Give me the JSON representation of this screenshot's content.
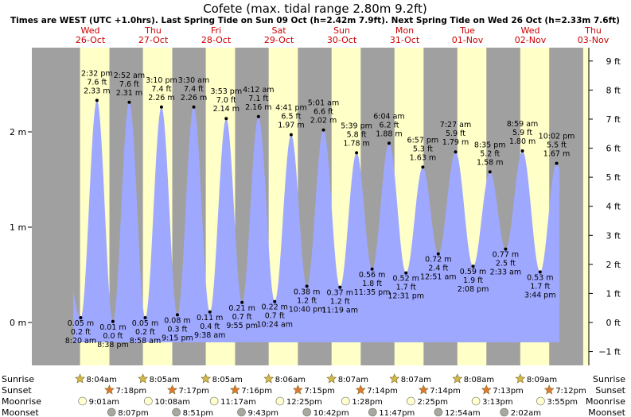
{
  "chart_data": {
    "type": "area",
    "title": "Cofete (max. tidal range 2.80m 9.2ft)",
    "subtitle": "Times are WEST (UTC +1.0hrs). Last Spring Tide on Sun 09 Oct (h=2.42m 7.9ft). Next Spring Tide on Wed 26 Oct (h=2.33m 7.6ft)",
    "colors": {
      "night": "#a0a0a0",
      "day": "#ffffc8",
      "tide": "#9fa8ff",
      "label_day": "#cc0000",
      "sun_icon": "#d4b84a",
      "sunset_icon": "#e07a2e",
      "moonrise_icon": "#ffffd0",
      "moonset_icon": "#a8a8a0"
    },
    "days": [
      {
        "dow": "Wed",
        "date": "26-Oct"
      },
      {
        "dow": "Thu",
        "date": "27-Oct"
      },
      {
        "dow": "Fri",
        "date": "28-Oct"
      },
      {
        "dow": "Sat",
        "date": "29-Oct"
      },
      {
        "dow": "Sun",
        "date": "30-Oct"
      },
      {
        "dow": "Mon",
        "date": "31-Oct"
      },
      {
        "dow": "Tue",
        "date": "01-Nov"
      },
      {
        "dow": "Wed",
        "date": "02-Nov"
      },
      {
        "dow": "Thu",
        "date": "03-Nov"
      }
    ],
    "y_left_ticks": [
      {
        "v": 0,
        "label": "0 m"
      },
      {
        "v": 1,
        "label": "1 m"
      },
      {
        "v": 2,
        "label": "2 m"
      }
    ],
    "y_right_ticks": [
      {
        "v": -1,
        "label": "−1 ft"
      },
      {
        "v": 0,
        "label": "0 ft"
      },
      {
        "v": 1,
        "label": "1 ft"
      },
      {
        "v": 2,
        "label": "2 ft"
      },
      {
        "v": 3,
        "label": "3 ft"
      },
      {
        "v": 4,
        "label": "4 ft"
      },
      {
        "v": 5,
        "label": "5 ft"
      },
      {
        "v": 6,
        "label": "6 ft"
      },
      {
        "v": 7,
        "label": "7 ft"
      },
      {
        "v": 8,
        "label": "8 ft"
      },
      {
        "v": 9,
        "label": "9 ft"
      }
    ],
    "ylim_m": [
      -0.25,
      2.55
    ],
    "daylight": [
      {
        "day": 0,
        "sunrise": "8:04am",
        "sunset": "7:18pm"
      },
      {
        "day": 1,
        "sunrise": "8:05am",
        "sunset": "7:17pm"
      },
      {
        "day": 2,
        "sunrise": "8:05am",
        "sunset": "7:16pm"
      },
      {
        "day": 3,
        "sunrise": "8:06am",
        "sunset": "7:15pm"
      },
      {
        "day": 4,
        "sunrise": "8:07am",
        "sunset": "7:14pm"
      },
      {
        "day": 5,
        "sunrise": "8:07am",
        "sunset": "7:14pm"
      },
      {
        "day": 6,
        "sunrise": "8:08am",
        "sunset": "7:13pm"
      },
      {
        "day": 7,
        "sunrise": "8:09am",
        "sunset": "7:12pm"
      }
    ],
    "moon": [
      {
        "day": 0,
        "moonrise": "9:01am",
        "moonset": "8:07pm"
      },
      {
        "day": 1,
        "moonrise": "10:08am",
        "moonset": "8:51pm"
      },
      {
        "day": 2,
        "moonrise": "11:17am",
        "moonset": "9:43pm"
      },
      {
        "day": 3,
        "moonrise": "12:25pm",
        "moonset": "10:42pm"
      },
      {
        "day": 4,
        "moonrise": "1:28pm",
        "moonset": "11:47pm"
      },
      {
        "day": 5,
        "moonrise": "2:25pm",
        "moonset": ""
      },
      {
        "day": 6,
        "moonrise": "3:13pm",
        "moonset": "12:54am"
      },
      {
        "day": 7,
        "moonrise": "3:55pm",
        "moonset": "2:02am"
      }
    ],
    "tides": [
      {
        "day": 0,
        "time": "8:20 am",
        "h": 0.05,
        "ft": "0.2 ft",
        "hm": "0.05 m",
        "type": "low"
      },
      {
        "day": 0,
        "time": "2:32 pm",
        "h": 2.33,
        "ft": "7.6 ft",
        "hm": "2.33 m",
        "type": "high"
      },
      {
        "day": 0,
        "time": "8:38 pm",
        "h": 0.01,
        "ft": "0.0 ft",
        "hm": "0.01 m",
        "type": "low"
      },
      {
        "day": 1,
        "time": "2:52 am",
        "h": 2.31,
        "ft": "7.6 ft",
        "hm": "2.31 m",
        "type": "high"
      },
      {
        "day": 1,
        "time": "8:58 am",
        "h": 0.05,
        "ft": "0.2 ft",
        "hm": "0.05 m",
        "type": "low"
      },
      {
        "day": 1,
        "time": "3:10 pm",
        "h": 2.26,
        "ft": "7.4 ft",
        "hm": "2.26 m",
        "type": "high"
      },
      {
        "day": 1,
        "time": "9:15 pm",
        "h": 0.08,
        "ft": "0.3 ft",
        "hm": "0.08 m",
        "type": "low"
      },
      {
        "day": 2,
        "time": "3:30 am",
        "h": 2.26,
        "ft": "7.4 ft",
        "hm": "2.26 m",
        "type": "high"
      },
      {
        "day": 2,
        "time": "9:38 am",
        "h": 0.11,
        "ft": "0.4 ft",
        "hm": "0.11 m",
        "type": "low"
      },
      {
        "day": 2,
        "time": "3:53 pm",
        "h": 2.14,
        "ft": "7.0 ft",
        "hm": "2.14 m",
        "type": "high"
      },
      {
        "day": 2,
        "time": "9:55 pm",
        "h": 0.21,
        "ft": "0.7 ft",
        "hm": "0.21 m",
        "type": "low"
      },
      {
        "day": 3,
        "time": "4:12 am",
        "h": 2.16,
        "ft": "7.1 ft",
        "hm": "2.16 m",
        "type": "high"
      },
      {
        "day": 3,
        "time": "10:24 am",
        "h": 0.22,
        "ft": "0.7 ft",
        "hm": "0.22 m",
        "type": "low"
      },
      {
        "day": 3,
        "time": "4:41 pm",
        "h": 1.97,
        "ft": "6.5 ft",
        "hm": "1.97 m",
        "type": "high"
      },
      {
        "day": 3,
        "time": "10:40 pm",
        "h": 0.38,
        "ft": "1.2 ft",
        "hm": "0.38 m",
        "type": "low"
      },
      {
        "day": 4,
        "time": "5:01 am",
        "h": 2.02,
        "ft": "6.6 ft",
        "hm": "2.02 m",
        "type": "high"
      },
      {
        "day": 4,
        "time": "11:19 am",
        "h": 0.37,
        "ft": "1.2 ft",
        "hm": "0.37 m",
        "type": "low"
      },
      {
        "day": 4,
        "time": "5:39 pm",
        "h": 1.78,
        "ft": "5.8 ft",
        "hm": "1.78 m",
        "type": "high"
      },
      {
        "day": 4,
        "time": "11:35 pm",
        "h": 0.56,
        "ft": "1.8 ft",
        "hm": "0.56 m",
        "type": "low"
      },
      {
        "day": 5,
        "time": "6:04 am",
        "h": 1.88,
        "ft": "6.2 ft",
        "hm": "1.88 m",
        "type": "high"
      },
      {
        "day": 5,
        "time": "12:31 pm",
        "h": 0.52,
        "ft": "1.7 ft",
        "hm": "0.52 m",
        "type": "low"
      },
      {
        "day": 5,
        "time": "6:57 pm",
        "h": 1.63,
        "ft": "5.3 ft",
        "hm": "1.63 m",
        "type": "high"
      },
      {
        "day": 6,
        "time": "12:51 am",
        "h": 0.72,
        "ft": "2.4 ft",
        "hm": "0.72 m",
        "type": "low"
      },
      {
        "day": 6,
        "time": "7:27 am",
        "h": 1.79,
        "ft": "5.9 ft",
        "hm": "1.79 m",
        "type": "high"
      },
      {
        "day": 6,
        "time": "2:08 pm",
        "h": 0.59,
        "ft": "1.9 ft",
        "hm": "0.59 m",
        "type": "low"
      },
      {
        "day": 6,
        "time": "8:35 pm",
        "h": 1.58,
        "ft": "5.2 ft",
        "hm": "1.58 m",
        "type": "high"
      },
      {
        "day": 7,
        "time": "2:33 am",
        "h": 0.77,
        "ft": "2.5 ft",
        "hm": "0.77 m",
        "type": "low"
      },
      {
        "day": 7,
        "time": "8:59 am",
        "h": 1.8,
        "ft": "5.9 ft",
        "hm": "1.80 m",
        "type": "high"
      },
      {
        "day": 7,
        "time": "3:44 pm",
        "h": 0.53,
        "ft": "1.7 ft",
        "hm": "0.53 m",
        "type": "low"
      },
      {
        "day": 7,
        "time": "10:02 pm",
        "h": 1.67,
        "ft": "5.5 ft",
        "hm": "1.67 m",
        "type": "high"
      }
    ],
    "row_labels": {
      "sunrise": "Sunrise",
      "sunset": "Sunset",
      "moonrise": "Moonrise",
      "moonset": "Moonset"
    }
  }
}
